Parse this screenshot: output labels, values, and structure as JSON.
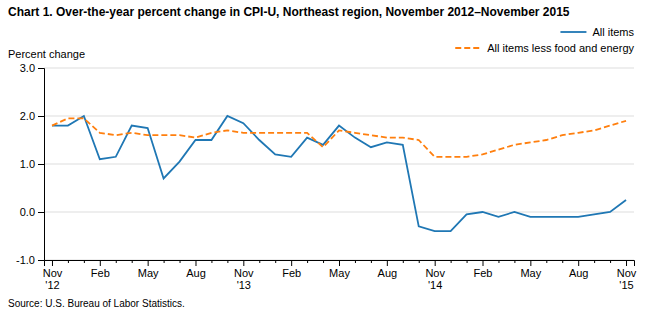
{
  "chart_data": {
    "type": "line",
    "title": "Chart 1. Over-the-year percent change in CPI-U, Northeast region, November 2012–November 2015",
    "ylabel": "Percent change",
    "source": "Source: U.S. Bureau of Labor Statistics.",
    "categories": [
      "Nov\n'12",
      null,
      null,
      "Feb",
      null,
      null,
      "May",
      null,
      null,
      "Aug",
      null,
      null,
      "Nov\n'13",
      null,
      null,
      "Feb",
      null,
      null,
      "May",
      null,
      null,
      "Aug",
      null,
      null,
      "Nov\n'14",
      null,
      null,
      "Feb",
      null,
      null,
      "May",
      null,
      null,
      "Aug",
      null,
      null,
      "Nov\n'15"
    ],
    "series": [
      {
        "name": "All items",
        "line_style": "solid",
        "values": [
          1.8,
          1.8,
          2.0,
          1.1,
          1.15,
          1.8,
          1.75,
          0.7,
          1.05,
          1.5,
          1.5,
          2.0,
          1.85,
          1.5,
          1.2,
          1.15,
          1.55,
          1.4,
          1.8,
          1.55,
          1.35,
          1.45,
          1.4,
          -0.3,
          -0.4,
          -0.4,
          -0.05,
          0.0,
          -0.1,
          0.0,
          -0.1,
          -0.1,
          -0.1,
          -0.1,
          -0.05,
          0.0,
          0.25
        ]
      },
      {
        "name": "All items less food and energy",
        "line_style": "dashed",
        "values": [
          1.8,
          1.95,
          1.95,
          1.65,
          1.6,
          1.65,
          1.6,
          1.6,
          1.6,
          1.55,
          1.65,
          1.7,
          1.65,
          1.65,
          1.65,
          1.65,
          1.65,
          1.35,
          1.7,
          1.65,
          1.6,
          1.55,
          1.55,
          1.5,
          1.15,
          1.15,
          1.15,
          1.2,
          1.3,
          1.4,
          1.45,
          1.5,
          1.6,
          1.65,
          1.7,
          1.8,
          1.9
        ]
      }
    ],
    "ylim": [
      -1.0,
      3.0
    ],
    "yticks": [
      {
        "value": -1.0,
        "label": "-1.0"
      },
      {
        "value": 0.0,
        "label": "0.0"
      },
      {
        "value": 1.0,
        "label": "1.0"
      },
      {
        "value": 2.0,
        "label": "2.0"
      },
      {
        "value": 3.0,
        "label": "3.0"
      }
    ],
    "grid": true,
    "legend": "top-right"
  }
}
